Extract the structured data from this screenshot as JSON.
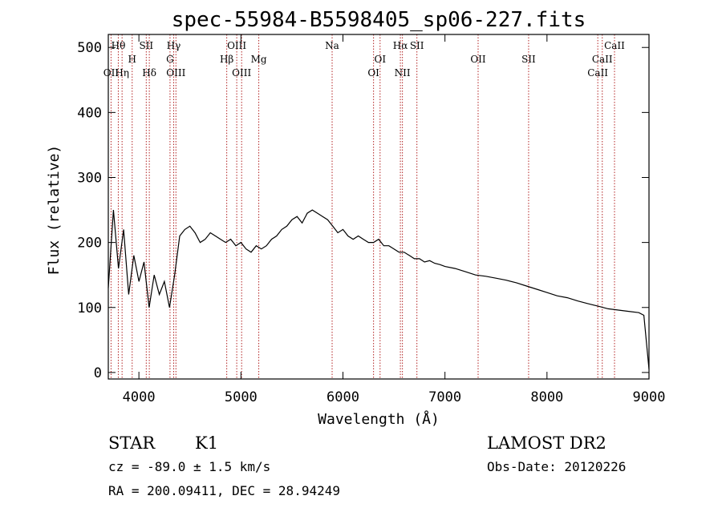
{
  "title": "spec-55984-B5598405_sp06-227.fits",
  "info": {
    "object_class": "STAR",
    "subclass": "K1",
    "survey": "LAMOST DR2",
    "cz": "cz = -89.0 ± 1.5 km/s",
    "obs_date": "Obs-Date: 20120226",
    "radec": "RA = 200.09411, DEC =  28.94249"
  },
  "chart_data": {
    "type": "line",
    "title": "spec-55984-B5598405_sp06-227.fits",
    "xlabel": "Wavelength (Å)",
    "ylabel": "Flux (relative)",
    "xlim": [
      3700,
      9000
    ],
    "ylim": [
      -10,
      520
    ],
    "xticks": [
      4000,
      5000,
      6000,
      7000,
      8000,
      9000
    ],
    "yticks": [
      0,
      100,
      200,
      300,
      400,
      500
    ],
    "grid": false,
    "line_color": "#000000",
    "marker_color": "#b22222",
    "series": [
      {
        "x": [
          3700,
          3750,
          3800,
          3850,
          3900,
          3950,
          4000,
          4050,
          4100,
          4150,
          4200,
          4250,
          4300,
          4350,
          4400,
          4450,
          4500,
          4550,
          4600,
          4650,
          4700,
          4750,
          4800,
          4850,
          4900,
          4950,
          5000,
          5050,
          5100,
          5150,
          5200,
          5250,
          5300,
          5350,
          5400,
          5450,
          5500,
          5550,
          5600,
          5650,
          5700,
          5750,
          5800,
          5850,
          5900,
          5950,
          6000,
          6050,
          6100,
          6150,
          6200,
          6250,
          6300,
          6350,
          6400,
          6450,
          6500,
          6550,
          6600,
          6650,
          6700,
          6750,
          6800,
          6850,
          6900,
          6950,
          7000,
          7100,
          7200,
          7300,
          7400,
          7500,
          7600,
          7700,
          7800,
          7900,
          8000,
          8100,
          8200,
          8300,
          8400,
          8500,
          8600,
          8700,
          8800,
          8900,
          8950,
          9000
        ],
        "y": [
          130,
          250,
          160,
          220,
          120,
          180,
          140,
          170,
          100,
          150,
          120,
          140,
          100,
          150,
          210,
          220,
          225,
          215,
          200,
          205,
          215,
          210,
          205,
          200,
          205,
          195,
          200,
          190,
          185,
          195,
          190,
          195,
          205,
          210,
          220,
          225,
          235,
          240,
          230,
          245,
          250,
          245,
          240,
          235,
          225,
          215,
          220,
          210,
          205,
          210,
          205,
          200,
          200,
          205,
          195,
          195,
          190,
          185,
          185,
          180,
          175,
          175,
          170,
          172,
          168,
          166,
          163,
          160,
          155,
          150,
          148,
          145,
          142,
          138,
          133,
          128,
          123,
          118,
          115,
          110,
          106,
          102,
          98,
          96,
          94,
          92,
          88,
          5
        ]
      }
    ],
    "lines": [
      {
        "label": "Hθ",
        "wave": 3798,
        "row": 1
      },
      {
        "label": "OII",
        "wave": 3727,
        "row": 3
      },
      {
        "label": "Hη",
        "wave": 3835,
        "row": 3
      },
      {
        "label": "H",
        "wave": 3934,
        "row": 2
      },
      {
        "label": "SII",
        "wave": 4072,
        "row": 1
      },
      {
        "label": "Hδ",
        "wave": 4102,
        "row": 3
      },
      {
        "label": "Hγ",
        "wave": 4341,
        "row": 1
      },
      {
        "label": "G",
        "wave": 4305,
        "row": 2
      },
      {
        "label": "OIII",
        "wave": 4363,
        "row": 3
      },
      {
        "label": "Hβ",
        "wave": 4861,
        "row": 2
      },
      {
        "label": "OIII",
        "wave": 4959,
        "row": 1
      },
      {
        "label": "OIII",
        "wave": 5007,
        "row": 3
      },
      {
        "label": "Mg",
        "wave": 5175,
        "row": 2
      },
      {
        "label": "Na",
        "wave": 5894,
        "row": 1
      },
      {
        "label": "OI",
        "wave": 6364,
        "row": 2
      },
      {
        "label": "OI",
        "wave": 6300,
        "row": 3
      },
      {
        "label": "Hα",
        "wave": 6563,
        "row": 1
      },
      {
        "label": "NII",
        "wave": 6583,
        "row": 3
      },
      {
        "label": "SII",
        "wave": 6725,
        "row": 1
      },
      {
        "label": "OII",
        "wave": 7325,
        "row": 2
      },
      {
        "label": "SII",
        "wave": 7820,
        "row": 2
      },
      {
        "label": "CaII",
        "wave": 8662,
        "row": 1
      },
      {
        "label": "CaII",
        "wave": 8542,
        "row": 2
      },
      {
        "label": "CaII",
        "wave": 8498,
        "row": 3
      }
    ]
  }
}
